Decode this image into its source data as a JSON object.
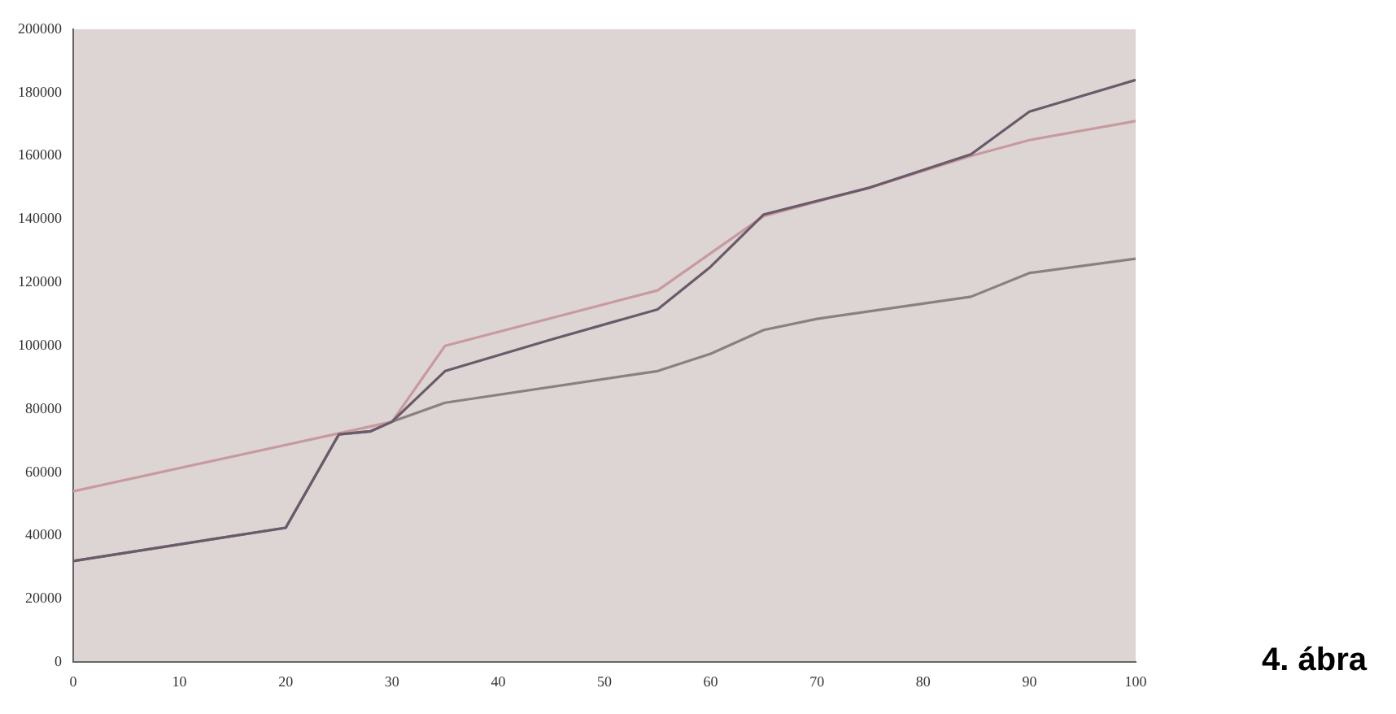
{
  "chart_data": {
    "type": "line",
    "annotations": [
      "4. ábra"
    ],
    "xlim": [
      0,
      100
    ],
    "xticks": [
      0,
      10,
      20,
      30,
      40,
      50,
      60,
      70,
      80,
      90,
      100
    ],
    "ylim": [
      0,
      200000
    ],
    "yticks": [
      0,
      20000,
      40000,
      60000,
      80000,
      100000,
      120000,
      140000,
      160000,
      180000,
      200000
    ],
    "grid": false,
    "legend": false,
    "marker": "none",
    "line_style": "solid",
    "series": [
      {
        "color": "#6a5a6a",
        "x": [
          0,
          20,
          25,
          28,
          30,
          35,
          45,
          55,
          60,
          65,
          75,
          84.5,
          90,
          100
        ],
        "values": [
          32000,
          42500,
          72000,
          73000,
          76000,
          92000,
          102000,
          111500,
          125000,
          141500,
          150000,
          160500,
          174000,
          184000
        ]
      },
      {
        "color": "#c89aa0",
        "x": [
          0,
          30,
          35,
          55,
          65,
          75,
          84.5,
          90,
          100
        ],
        "values": [
          54000,
          76000,
          100000,
          117500,
          141000,
          150000,
          160000,
          165000,
          171000
        ]
      },
      {
        "color": "#8a8080",
        "x": [
          0,
          20,
          25,
          28,
          30,
          35,
          55,
          60,
          65,
          70,
          84.5,
          90,
          100
        ],
        "values": [
          32000,
          42500,
          72000,
          73000,
          76000,
          82000,
          92000,
          97500,
          105000,
          108500,
          115500,
          123000,
          127500
        ]
      }
    ]
  }
}
